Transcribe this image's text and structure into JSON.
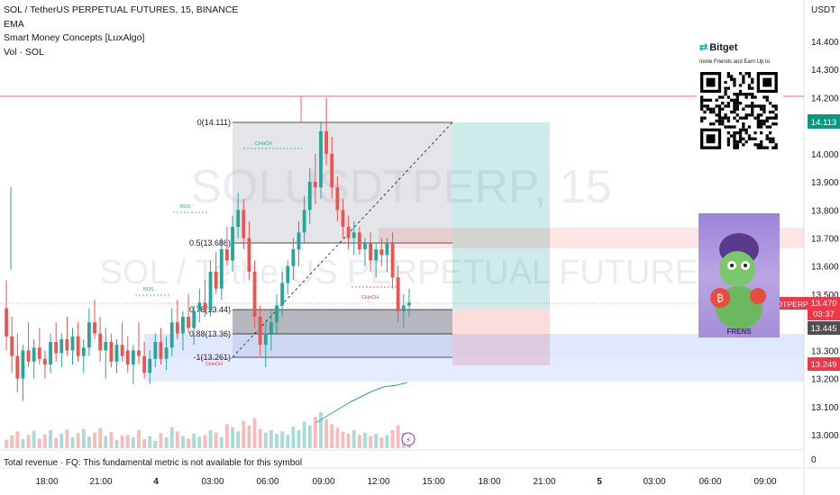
{
  "legend": {
    "title": "SOL / TetherUS PERPETUAL FUTURES, 15, BINANCE",
    "ind1": "EMA",
    "ind2": "Smart Money Concepts [LuxAlgo]",
    "ind3": "Vol · SOL"
  },
  "watermark": {
    "symbol": "SOLUSDTPERP, 15",
    "desc": "SOL / TetherUS PERPETUAL FUTURES"
  },
  "footer_note": "Total revenue · FQ: This fundamental metric is not available for this symbol",
  "price_axis": {
    "unit": "USDT",
    "ticks": [
      "14.400",
      "14.300",
      "14.200",
      "14.000",
      "13.900",
      "13.800",
      "13.700",
      "13.600",
      "13.500",
      "13.300",
      "13.200",
      "13.100",
      "13.000"
    ],
    "zero": "0"
  },
  "price_tags": {
    "tag1": "14.113",
    "tag2": "13.470",
    "tag3": "03:37",
    "tag4": "13.445",
    "tag5": "13.249",
    "symbol_tag": "SOLUSDTPERP"
  },
  "time_axis": [
    "18:00",
    "21:00",
    "4",
    "03:00",
    "06:00",
    "09:00",
    "12:00",
    "15:00",
    "18:00",
    "21:00",
    "5",
    "03:00",
    "06:00",
    "09:00"
  ],
  "fib": {
    "l0": "0(14.111)",
    "l05": "0.5(13.686)",
    "l078": "0.78(13.44)",
    "l088": "0.88(13.36)",
    "l1": "-1(13.261)"
  },
  "smc_labels": {
    "choch1": "CHoCH",
    "bos1": "BOS",
    "bos2": "BOS",
    "choch2": "CHoCH",
    "choch3": "CHoCH"
  },
  "promo": {
    "brand": "Bitget",
    "sub": "Invite Friends and Earn Up to",
    "img_text": "FRENS"
  },
  "colors": {
    "up": "#26a69a",
    "down": "#ef5350",
    "accent_tag": "#089981",
    "red_tag": "#f23645",
    "grey_tag": "#4f4f4f"
  },
  "chart_data": {
    "type": "candlestick",
    "ylim": [
      12.9,
      14.5
    ],
    "candles": [
      [
        13.3,
        13.35,
        13.22,
        13.25
      ],
      [
        13.25,
        13.32,
        13.18,
        13.3
      ],
      [
        13.3,
        13.4,
        13.25,
        13.28
      ],
      [
        13.28,
        13.33,
        13.2,
        13.22
      ],
      [
        13.22,
        13.3,
        13.18,
        13.27
      ],
      [
        13.27,
        13.36,
        13.24,
        13.33
      ],
      [
        13.33,
        13.38,
        13.25,
        13.27
      ],
      [
        13.27,
        13.35,
        13.23,
        13.31
      ],
      [
        13.31,
        13.45,
        13.28,
        13.4
      ],
      [
        13.4,
        13.48,
        13.34,
        13.36
      ],
      [
        13.36,
        13.44,
        13.3,
        13.42
      ],
      [
        13.42,
        13.5,
        13.36,
        13.38
      ],
      [
        13.38,
        13.46,
        13.32,
        13.44
      ],
      [
        13.44,
        13.52,
        13.4,
        13.47
      ],
      [
        13.47,
        13.55,
        13.42,
        13.44
      ],
      [
        13.44,
        13.62,
        13.42,
        13.58
      ],
      [
        13.58,
        13.65,
        13.5,
        13.52
      ],
      [
        13.52,
        13.7,
        13.48,
        13.66
      ],
      [
        13.66,
        13.74,
        13.6,
        13.62
      ],
      [
        13.62,
        13.78,
        13.58,
        13.74
      ],
      [
        13.74,
        13.86,
        13.7,
        13.8
      ],
      [
        13.8,
        13.84,
        13.66,
        13.7
      ],
      [
        13.7,
        13.76,
        13.55,
        13.58
      ],
      [
        13.58,
        13.62,
        13.38,
        13.42
      ],
      [
        13.42,
        13.46,
        13.28,
        13.32
      ],
      [
        13.32,
        13.4,
        13.24,
        13.36
      ],
      [
        13.36,
        13.44,
        13.3,
        13.4
      ],
      [
        13.4,
        13.5,
        13.36,
        13.46
      ],
      [
        13.46,
        13.58,
        13.42,
        13.54
      ],
      [
        13.54,
        13.62,
        13.5,
        13.6
      ],
      [
        13.6,
        13.7,
        13.55,
        13.66
      ],
      [
        13.66,
        13.76,
        13.6,
        13.72
      ],
      [
        13.72,
        13.85,
        13.68,
        13.8
      ],
      [
        13.8,
        13.95,
        13.75,
        13.9
      ],
      [
        13.9,
        14.0,
        13.82,
        13.88
      ],
      [
        13.88,
        14.11,
        13.84,
        14.08
      ],
      [
        14.08,
        14.2,
        13.96,
        14.0
      ],
      [
        14.0,
        14.06,
        13.84,
        13.88
      ],
      [
        13.88,
        13.92,
        13.76,
        13.8
      ],
      [
        13.8,
        13.84,
        13.7,
        13.74
      ],
      [
        13.74,
        13.78,
        13.66,
        13.7
      ],
      [
        13.7,
        13.76,
        13.64,
        13.72
      ],
      [
        13.72,
        13.74,
        13.64,
        13.66
      ],
      [
        13.66,
        13.7,
        13.6,
        13.68
      ],
      [
        13.68,
        13.72,
        13.58,
        13.62
      ],
      [
        13.62,
        13.68,
        13.56,
        13.66
      ],
      [
        13.66,
        13.7,
        13.6,
        13.64
      ],
      [
        13.64,
        13.7,
        13.58,
        13.68
      ],
      [
        13.68,
        13.72,
        13.52,
        13.56
      ],
      [
        13.56,
        13.6,
        13.4,
        13.44
      ],
      [
        13.44,
        13.5,
        13.38,
        13.46
      ],
      [
        13.46,
        13.52,
        13.42,
        13.47
      ]
    ],
    "volume": [
      22,
      18,
      30,
      15,
      20,
      12,
      25,
      18,
      35,
      28,
      20,
      16,
      24,
      19,
      22,
      30,
      26,
      18,
      40,
      35,
      28,
      45,
      38,
      50,
      32,
      26,
      30,
      24,
      28,
      22,
      36,
      30,
      44,
      38,
      52,
      60,
      48,
      40,
      34,
      28,
      24,
      30,
      22,
      26,
      20,
      24,
      18,
      22,
      30,
      38,
      26,
      20
    ]
  }
}
